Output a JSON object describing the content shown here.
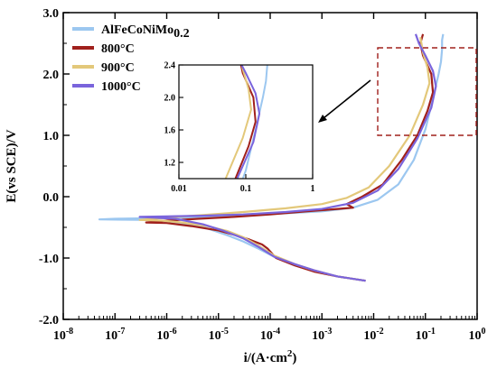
{
  "chart_data": {
    "type": "line",
    "title": "",
    "xlabel": "i/(A·cm2)",
    "ylabel": "E(vs SCE)/V",
    "x_scale": "log",
    "xlim": [
      1e-08,
      1
    ],
    "ylim": [
      -2.0,
      3.0
    ],
    "x_tick_labels": [
      "10-8",
      "10-7",
      "10-6",
      "10-5",
      "10-4",
      "10-3",
      "10-2",
      "10-1",
      "100"
    ],
    "y_tick_labels": [
      "-2.0",
      "-1.0",
      "0.0",
      "1.0",
      "2.0",
      "3.0"
    ],
    "grid": false,
    "legend_position": "top-left",
    "series": [
      {
        "name": "AlFeCoNiMo0.2",
        "color": "#9cc7f0",
        "x": [
          0.007,
          0.002,
          0.0008,
          0.0003,
          0.00012,
          6e-05,
          3e-05,
          1.5e-05,
          8e-06,
          4e-06,
          1.5e-06,
          5e-07,
          5e-08,
          1e-07,
          5e-07,
          2e-06,
          8e-06,
          4e-05,
          0.0002,
          0.001,
          0.004,
          0.012,
          0.03,
          0.06,
          0.1,
          0.14,
          0.18,
          0.2,
          0.21,
          0.21,
          0.22
        ],
        "y": [
          -1.37,
          -1.3,
          -1.22,
          -1.12,
          -0.98,
          -0.85,
          -0.73,
          -0.63,
          -0.55,
          -0.47,
          -0.42,
          -0.38,
          -0.37,
          -0.36,
          -0.35,
          -0.34,
          -0.32,
          -0.3,
          -0.27,
          -0.24,
          -0.18,
          -0.05,
          0.2,
          0.6,
          1.1,
          1.6,
          2.0,
          2.2,
          2.4,
          2.55,
          2.65
        ]
      },
      {
        "name": "800°C",
        "color": "#a0201c",
        "x": [
          0.007,
          0.002,
          0.0007,
          0.0003,
          0.00013,
          9e-05,
          7e-05,
          4e-05,
          2e-05,
          1e-05,
          3e-06,
          1e-06,
          4e-07,
          1e-06,
          4e-06,
          2e-05,
          0.0001,
          0.0005,
          0.002,
          0.004,
          0.003,
          0.006,
          0.015,
          0.035,
          0.07,
          0.11,
          0.14,
          0.13,
          0.09,
          0.08,
          0.09
        ],
        "y": [
          -1.37,
          -1.3,
          -1.22,
          -1.12,
          -1.0,
          -0.85,
          -0.78,
          -0.7,
          -0.62,
          -0.55,
          -0.48,
          -0.43,
          -0.42,
          -0.39,
          -0.36,
          -0.33,
          -0.29,
          -0.24,
          -0.2,
          -0.18,
          -0.12,
          0.0,
          0.2,
          0.6,
          1.0,
          1.4,
          1.7,
          2.0,
          2.3,
          2.5,
          2.65
        ]
      },
      {
        "name": "900°C",
        "color": "#e3c87a",
        "x": [
          0.007,
          0.002,
          0.0007,
          0.0003,
          0.00012,
          6e-05,
          3e-05,
          1.5e-05,
          6e-06,
          2e-06,
          8e-07,
          3e-07,
          1e-06,
          5e-06,
          3e-05,
          0.0002,
          0.001,
          0.003,
          0.008,
          0.02,
          0.05,
          0.09,
          0.12,
          0.11,
          0.09,
          0.08
        ],
        "y": [
          -1.37,
          -1.3,
          -1.2,
          -1.1,
          -0.96,
          -0.8,
          -0.66,
          -0.56,
          -0.48,
          -0.42,
          -0.39,
          -0.38,
          -0.34,
          -0.3,
          -0.25,
          -0.19,
          -0.12,
          -0.02,
          0.15,
          0.5,
          1.0,
          1.5,
          1.85,
          2.1,
          2.35,
          2.6
        ]
      },
      {
        "name": "1000°C",
        "color": "#7a64dc",
        "x": [
          0.007,
          0.002,
          0.0007,
          0.0003,
          0.00012,
          6e-05,
          3e-05,
          1.2e-05,
          5e-06,
          1.5e-06,
          3e-07,
          1e-06,
          5e-06,
          3e-05,
          0.0002,
          0.001,
          0.004,
          0.012,
          0.03,
          0.07,
          0.13,
          0.16,
          0.14,
          0.1,
          0.075,
          0.065
        ],
        "y": [
          -1.37,
          -1.3,
          -1.2,
          -1.1,
          -0.98,
          -0.82,
          -0.68,
          -0.55,
          -0.45,
          -0.36,
          -0.33,
          -0.32,
          -0.31,
          -0.29,
          -0.25,
          -0.2,
          -0.1,
          0.1,
          0.45,
          0.95,
          1.45,
          1.8,
          2.05,
          2.3,
          2.5,
          2.65
        ]
      }
    ],
    "inset": {
      "xlim": [
        0.01,
        1
      ],
      "ylim": [
        1.0,
        2.4
      ],
      "x_tick_labels": [
        "0.01",
        "0.1",
        "1"
      ],
      "y_tick_labels": [
        "1.2",
        "1.6",
        "2.0",
        "2.4"
      ]
    }
  }
}
